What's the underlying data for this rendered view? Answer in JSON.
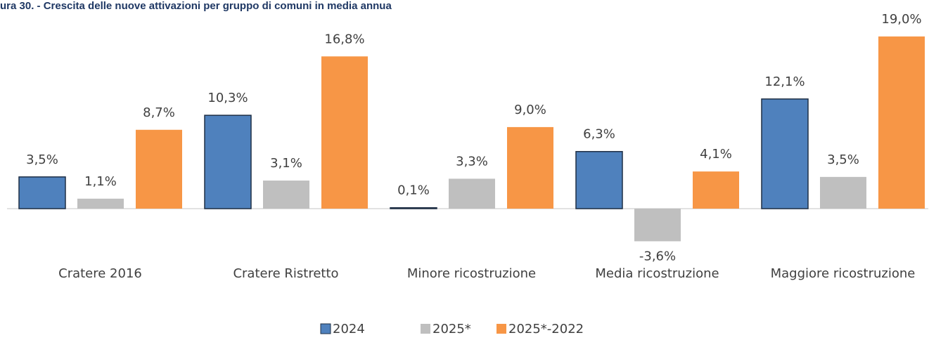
{
  "chart_data": {
    "type": "bar",
    "title": "ura 30. - Crescita delle nuove attivazioni per gruppo di comuni in media annua",
    "categories": [
      "Cratere 2016",
      "Cratere Ristretto",
      "Minore ricostruzione",
      "Media ricostruzione",
      "Maggiore ricostruzione"
    ],
    "series": [
      {
        "name": "2024",
        "color": "#4f81bd",
        "values": [
          3.5,
          10.3,
          0.1,
          6.3,
          12.1
        ],
        "value_labels": [
          "3,5%",
          "10,3%",
          "0,1%",
          "6,3%",
          "12,1%"
        ]
      },
      {
        "name": "2025*",
        "color": "#bfbfbf",
        "values": [
          1.1,
          3.1,
          3.3,
          -3.6,
          3.5
        ],
        "value_labels": [
          "1,1%",
          "3,1%",
          "3,3%",
          "-3,6%",
          "3,5%"
        ]
      },
      {
        "name": "2025*-2022",
        "color": "#f79646",
        "values": [
          8.7,
          16.8,
          9.0,
          4.1,
          19.0
        ],
        "value_labels": [
          "8,7%",
          "16,8%",
          "9,0%",
          "4,1%",
          "19,0%"
        ]
      }
    ],
    "legend": "bottom"
  }
}
